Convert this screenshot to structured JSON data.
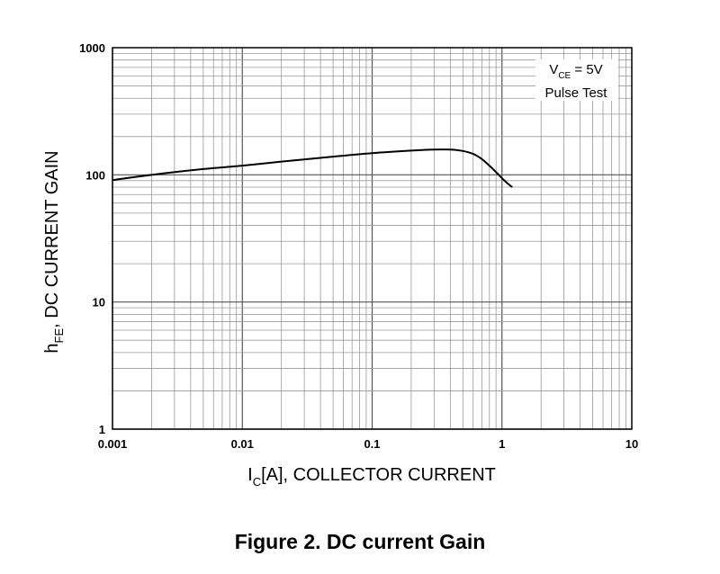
{
  "caption": "Figure 2. DC current Gain",
  "chart_data": {
    "type": "line",
    "title": "",
    "x_scale": "log",
    "y_scale": "log",
    "xlim": [
      0.001,
      10
    ],
    "ylim": [
      1,
      1000
    ],
    "grid": true,
    "x_ticks": [
      "0.001",
      "0.01",
      "0.1",
      "1",
      "10"
    ],
    "y_ticks": [
      "1",
      "10",
      "100",
      "1000"
    ],
    "xlabel": {
      "symbol": "I",
      "subscript": "C",
      "rest": "[A], COLLECTOR CURRENT"
    },
    "ylabel": {
      "symbol": "h",
      "subscript": "FE",
      "rest": ", DC CURRENT GAIN"
    },
    "annotation": {
      "line1_symbol": "V",
      "line1_subscript": "CE",
      "line1_rest": " = 5V",
      "line2": "Pulse Test"
    },
    "series": [
      {
        "color": "#000000",
        "x": [
          0.001,
          0.002,
          0.005,
          0.01,
          0.02,
          0.05,
          0.1,
          0.2,
          0.3,
          0.4,
          0.5,
          0.6,
          0.7,
          0.8,
          0.9,
          1.0,
          1.1,
          1.2
        ],
        "y": [
          91,
          100,
          111,
          118,
          127,
          139,
          148,
          155,
          158,
          158,
          154,
          146,
          133,
          118,
          105,
          94,
          86,
          80
        ]
      }
    ]
  }
}
